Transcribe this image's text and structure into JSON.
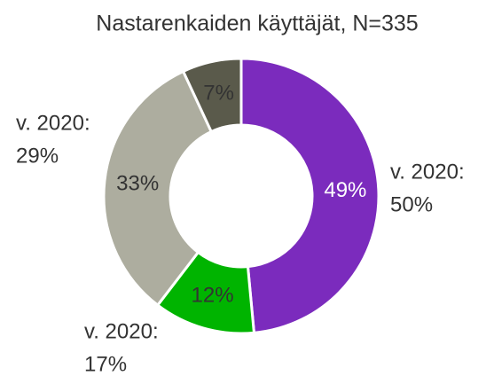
{
  "chart_data": {
    "type": "donut",
    "title": "Nastarenkaiden käyttäjät, N=335",
    "categories": [
      null,
      null,
      null,
      null
    ],
    "values": [
      49,
      12,
      33,
      7
    ],
    "value_labels": [
      "49%",
      "12%",
      "33%",
      "7%"
    ],
    "colors": [
      "#7b2bbd",
      "#00b400",
      "#adad9f",
      "#5a5a4b"
    ],
    "annotations": [
      [
        "v. 2020:",
        "50%"
      ],
      [
        "v. 2020:",
        "17%"
      ],
      [
        "v. 2020:",
        "29%"
      ]
    ]
  }
}
